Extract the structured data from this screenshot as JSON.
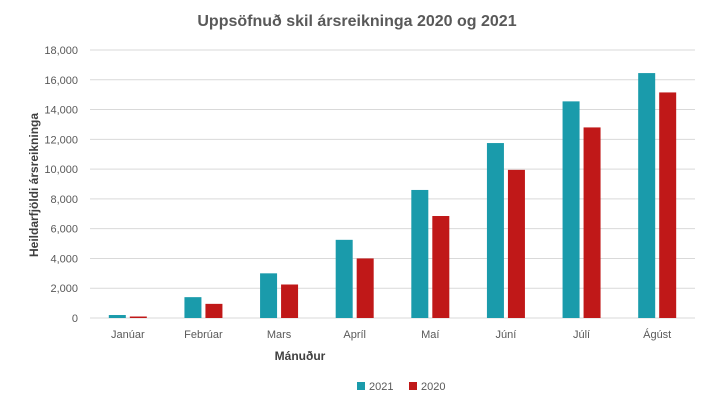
{
  "chart_data": {
    "type": "bar",
    "title": "Uppsöfnuð skil ársreikninga 2020 og 2021",
    "xlabel": "Mánuður",
    "ylabel": "Heildarfjöldi ársreikninga",
    "ylim": [
      0,
      18000
    ],
    "yticks": [
      "0",
      "2,000",
      "4,000",
      "6,000",
      "8,000",
      "10,000",
      "12,000",
      "14,000",
      "16,000",
      "18,000"
    ],
    "categories": [
      "Janúar",
      "Febrúar",
      "Mars",
      "Apríl",
      "Maí",
      "Júní",
      "Júlí",
      "Ágúst"
    ],
    "grid": true,
    "legend_position": "bottom",
    "series": [
      {
        "name": "2021",
        "color": "#1a9bab",
        "values": [
          200,
          1400,
          3000,
          5250,
          8600,
          11750,
          14550,
          16450
        ]
      },
      {
        "name": "2020",
        "color": "#c01818",
        "values": [
          100,
          950,
          2250,
          4000,
          6850,
          9950,
          12800,
          15150
        ]
      }
    ]
  }
}
